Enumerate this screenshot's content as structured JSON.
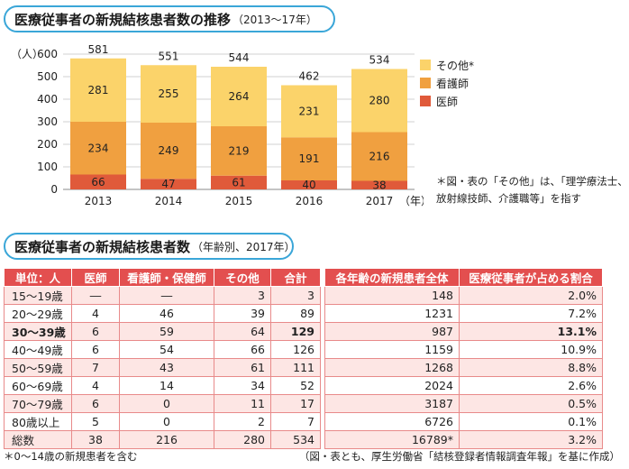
{
  "section1": {
    "title": "医療従事者の新規結核患者数の推移",
    "subtitle": "（2013〜17年）"
  },
  "section2": {
    "title": "医療従事者の新規結核患者数",
    "subtitle": "（年齢別、2017年）"
  },
  "chart_data": {
    "type": "bar",
    "stacked": true,
    "categories": [
      "2013",
      "2014",
      "2015",
      "2016",
      "2017"
    ],
    "x_suffix": "（年）",
    "y_unit": "（人）",
    "ylim": [
      0,
      600
    ],
    "yticks": [
      0,
      100,
      200,
      300,
      400,
      500,
      600
    ],
    "series": [
      {
        "name": "医師",
        "color": "#e05a3a",
        "values": [
          66,
          47,
          61,
          40,
          38
        ]
      },
      {
        "name": "看護師",
        "color": "#f0a040",
        "values": [
          234,
          249,
          219,
          191,
          216
        ]
      },
      {
        "name": "その他*",
        "color": "#fbd36a",
        "values": [
          281,
          255,
          264,
          231,
          280
        ]
      }
    ],
    "totals": [
      581,
      551,
      544,
      462,
      534
    ],
    "grid": true,
    "legend": "right"
  },
  "note": {
    "line1": "＊図・表の「その他」は、「理学療法士、",
    "line2": "放射線技師、介護職等」を指す"
  },
  "table": {
    "headers": [
      "単位：人",
      "医師",
      "看護師・保健師",
      "その他",
      "合計",
      "各年齢の新規患者全体",
      "医療従事者が占める割合"
    ],
    "rows": [
      [
        "15〜19歳",
        "―",
        "―",
        "3",
        "3",
        "148",
        "2.0%"
      ],
      [
        "20〜29歳",
        "4",
        "46",
        "39",
        "89",
        "1231",
        "7.2%"
      ],
      [
        "30〜39歳",
        "6",
        "59",
        "64",
        "129",
        "987",
        "13.1%"
      ],
      [
        "40〜49歳",
        "6",
        "54",
        "66",
        "126",
        "1159",
        "10.9%"
      ],
      [
        "50〜59歳",
        "7",
        "43",
        "61",
        "111",
        "1268",
        "8.8%"
      ],
      [
        "60〜69歳",
        "4",
        "14",
        "34",
        "52",
        "2024",
        "2.6%"
      ],
      [
        "70〜79歳",
        "6",
        "0",
        "11",
        "17",
        "3187",
        "0.5%"
      ],
      [
        "80歳以上",
        "5",
        "0",
        "2",
        "7",
        "6726",
        "0.1%"
      ],
      [
        "総数",
        "38",
        "216",
        "280",
        "534",
        "16789*",
        "3.2%"
      ]
    ]
  },
  "footer": {
    "left": "＊0〜14歳の新規患者を含む",
    "right": "（図・表とも、厚生労働省「結核登録者情報調査年報」を基に作成）"
  }
}
